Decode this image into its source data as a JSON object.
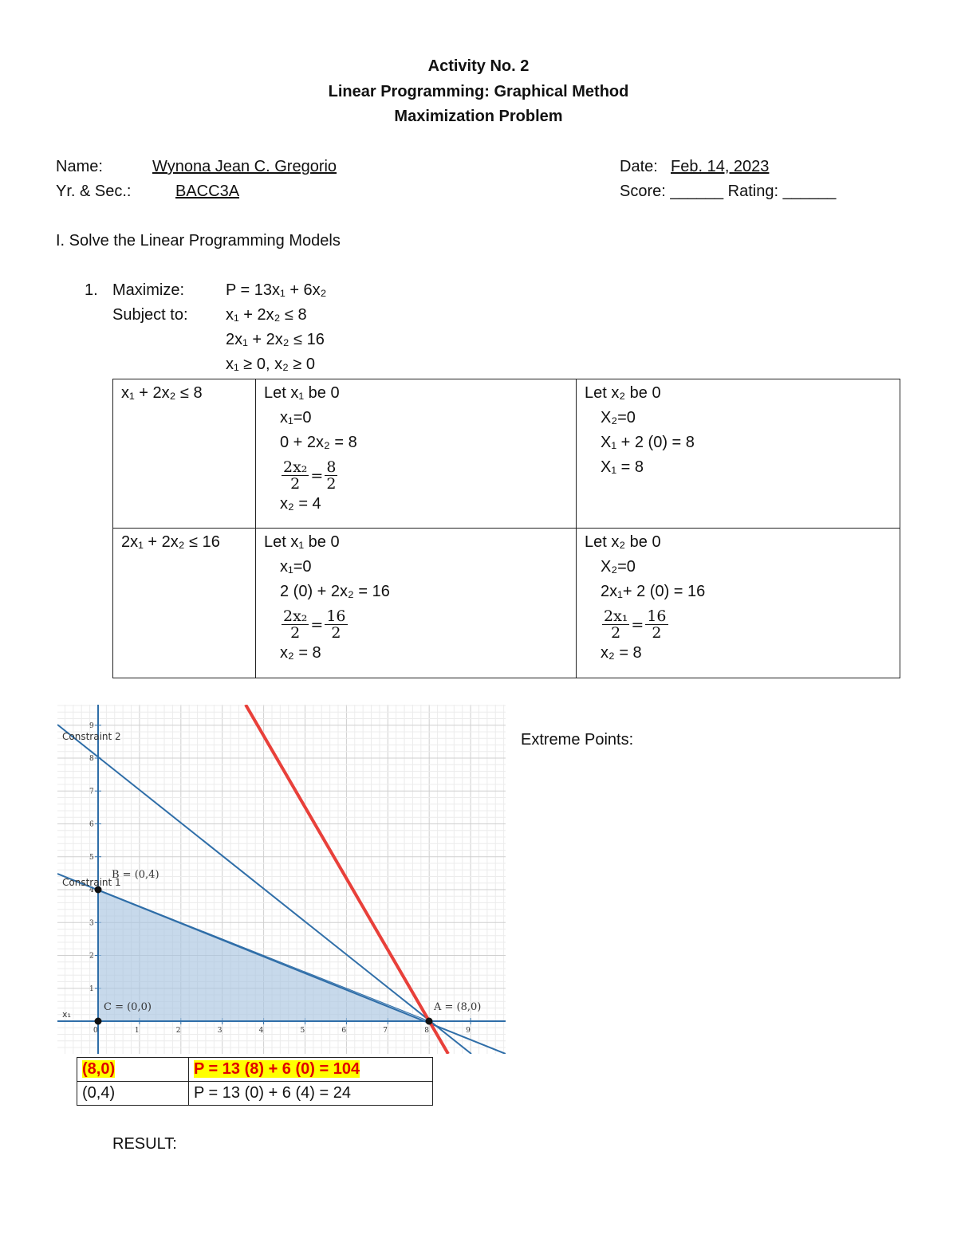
{
  "header": {
    "lines": [
      "Activity No. 2",
      "Linear Programming: Graphical Method",
      "Maximization Problem"
    ]
  },
  "info": {
    "name_label": "Name:",
    "name": "Wynona Jean C. Gregorio",
    "section_label": "Yr. & Sec.:",
    "section": "BACC3A",
    "date_label": "Date:",
    "date": "Feb. 14, 2023",
    "score": "Score: ______ Rating: ______"
  },
  "instruction": "I. Solve the Linear Programming Models",
  "problem": {
    "number": "1.",
    "maximize_label": "Maximize:",
    "objective": "P = 13x₁ + 6x₂",
    "subject_label": "Subject to:",
    "constraints": [
      "x₁ + 2x₂ ≤ 8",
      "2x₁ + 2x₂ ≤ 16",
      "x₁ ≥ 0, x₂ ≥ 0"
    ]
  },
  "table": {
    "rows": [
      {
        "constraint": "x₁ + 2x₂ ≤ 8",
        "col1": [
          "Let x₁ be 0",
          "x₁=0",
          "0 + 2x₂ =  8",
          {
            "num": "2x₂",
            "den": "2",
            "rnum": "8",
            "rden": "2"
          },
          "x₂ = 4"
        ],
        "col2": [
          "Let x₂ be 0",
          "X₂=0",
          "X₁ + 2 (0) =  8",
          "X₁ = 8"
        ]
      },
      {
        "constraint": "2x₁ + 2x₂ ≤ 16",
        "col1": [
          "Let x₁ be 0",
          "x₁=0",
          "2 (0) + 2x₂ = 16",
          {
            "num": "2x₂",
            "den": "2",
            "rnum": "16",
            "rden": "2"
          },
          "x₂ = 8"
        ],
        "col2": [
          "Let x₂ be 0",
          "X₂=0",
          "2x₁+ 2 (0) = 16",
          {
            "num": "2x₁",
            "den": "2",
            "rnum": "16",
            "rden": "2"
          },
          "x₂ = 8"
        ]
      }
    ]
  },
  "graph": {
    "xticks": [
      0,
      1,
      2,
      3,
      4,
      5,
      6,
      7,
      8,
      9
    ],
    "yticks": [
      1,
      2,
      3,
      4,
      5,
      6,
      7,
      8,
      9
    ],
    "labels": {
      "constraint2": "Constraint 2",
      "constraint1": "Constraint 1",
      "b": "B = (0,4)",
      "c": "C = (0,0)",
      "a": "A = (8,0)",
      "axis": "x₁"
    }
  },
  "extreme_label": "Extreme Points:",
  "results": {
    "rows": [
      [
        "(8,0)",
        "P = 13 (8) + 6 (0) = 104"
      ],
      [
        "(0,4)",
        "P = 13 (0) + 6 (4) = 24"
      ]
    ]
  },
  "result_label": "RESULT:"
}
